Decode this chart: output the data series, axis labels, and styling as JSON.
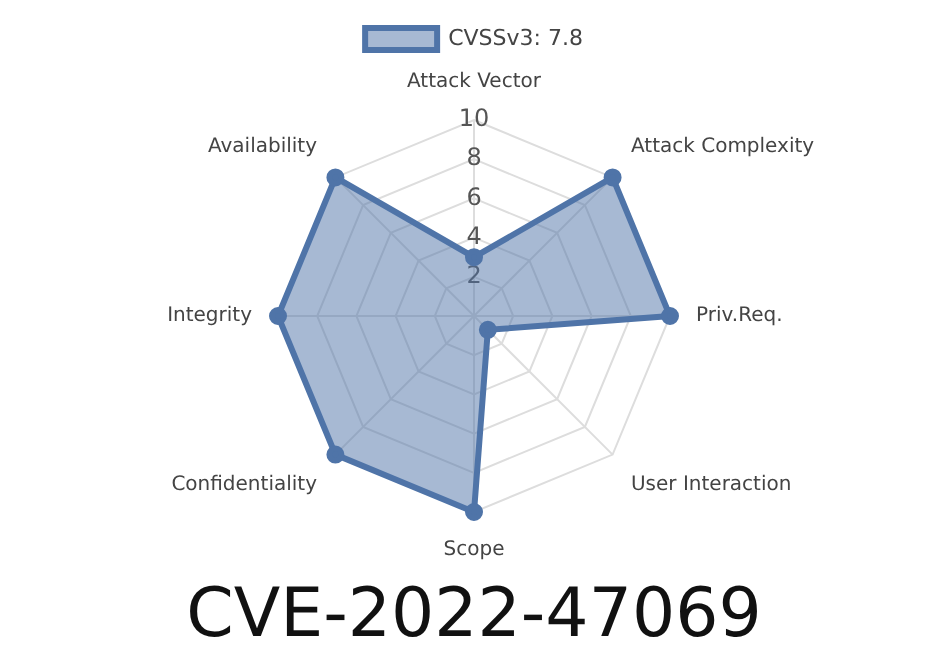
{
  "chart_data": {
    "type": "radar",
    "title": "CVE-2022-47069",
    "categories": [
      "Attack Vector",
      "Attack Complexity",
      "Priv.Req.",
      "User Interaction",
      "Scope",
      "Confidentiality",
      "Integrity",
      "Availability"
    ],
    "series": [
      {
        "name": "CVSSv3: 7.8",
        "color": "#4f74a8",
        "values": [
          3,
          10,
          10,
          1,
          10,
          10,
          10,
          10
        ]
      }
    ],
    "ylim": [
      0,
      10
    ],
    "yticks": [
      2,
      4,
      6,
      8,
      10
    ],
    "grid": true,
    "legend": "top",
    "marker": "circle"
  }
}
